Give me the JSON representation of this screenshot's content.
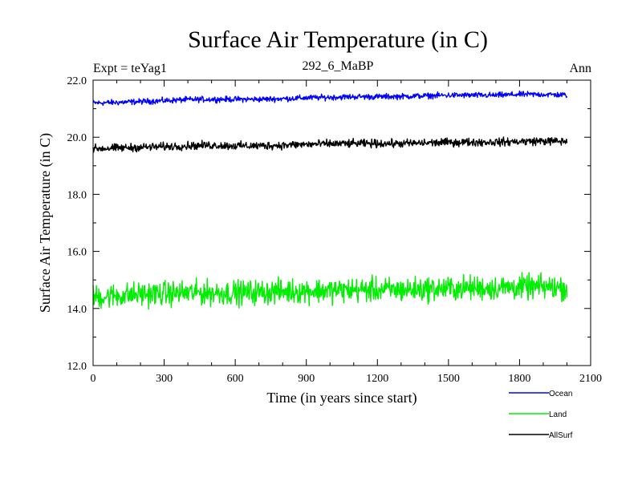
{
  "chart_data": {
    "type": "line",
    "title": "Surface Air Temperature (in C)",
    "subtitle": "292_6_MaBP",
    "left_label": "Expt = teYag1",
    "right_label": "Ann",
    "xlabel": "Time (in years since start)",
    "ylabel": "Surface Air Temperature (in C)",
    "xlim": [
      0,
      2100
    ],
    "ylim": [
      12.0,
      22.0
    ],
    "x_ticks": [
      0,
      300,
      600,
      900,
      1200,
      1500,
      1800,
      2100
    ],
    "x_tick_labels": [
      "0",
      "300",
      "600",
      "900",
      "1200",
      "1500",
      "1800",
      "2100"
    ],
    "y_ticks": [
      12.0,
      14.0,
      16.0,
      18.0,
      20.0,
      22.0
    ],
    "y_tick_labels": [
      "12.0",
      "14.0",
      "16.0",
      "18.0",
      "20.0",
      "22.0"
    ],
    "x": [
      0,
      100,
      200,
      300,
      400,
      500,
      600,
      700,
      800,
      900,
      1000,
      1100,
      1200,
      1300,
      1400,
      1500,
      1600,
      1700,
      1800,
      1900,
      2000
    ],
    "legend_position": "bottom-right",
    "series": [
      {
        "name": "Ocean",
        "color": "#0000ff",
        "values": [
          21.2,
          21.22,
          21.25,
          21.28,
          21.32,
          21.33,
          21.33,
          21.33,
          21.35,
          21.38,
          21.4,
          21.42,
          21.42,
          21.43,
          21.45,
          21.47,
          21.47,
          21.47,
          21.5,
          21.5,
          21.48
        ],
        "noise": 0.07
      },
      {
        "name": "Land",
        "color": "#00ee00",
        "values": [
          14.4,
          14.45,
          14.5,
          14.52,
          14.55,
          14.55,
          14.55,
          14.57,
          14.6,
          14.62,
          14.63,
          14.65,
          14.65,
          14.65,
          14.68,
          14.7,
          14.72,
          14.72,
          14.75,
          14.75,
          14.72
        ],
        "noise": 0.3
      },
      {
        "name": "AllSurf",
        "color": "#000000",
        "values": [
          19.6,
          19.62,
          19.65,
          19.67,
          19.7,
          19.72,
          19.7,
          19.7,
          19.72,
          19.75,
          19.77,
          19.78,
          19.78,
          19.78,
          19.8,
          19.82,
          19.83,
          19.83,
          19.85,
          19.87,
          19.85
        ],
        "noise": 0.1
      }
    ]
  }
}
